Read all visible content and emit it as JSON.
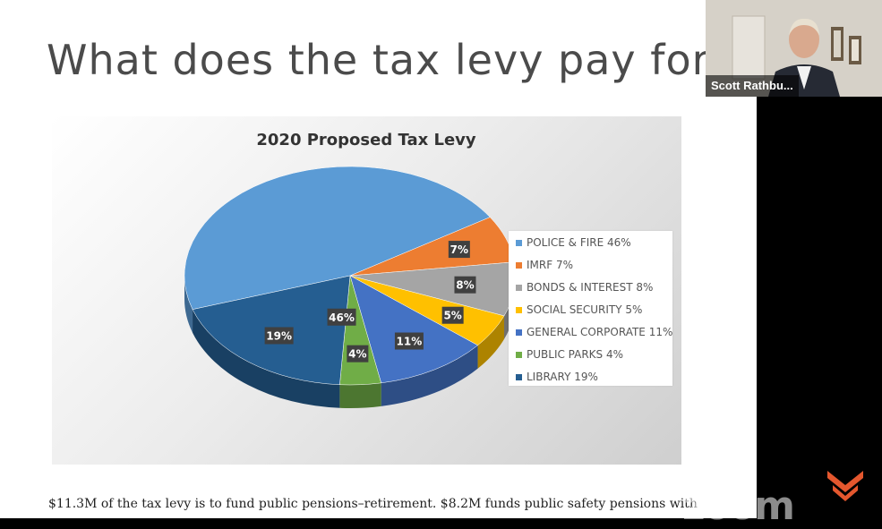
{
  "slide": {
    "title": "What does the tax levy pay for?",
    "caption": "$11.3M of the tax levy is to fund public pensions–retirement. $8.2M funds public safety pensions with"
  },
  "chart_data": {
    "type": "pie",
    "title": "2020 Proposed Tax Levy",
    "slices": [
      {
        "label": "POLICE & FIRE",
        "value": 46,
        "display": "46%",
        "color": "#5b9bd5"
      },
      {
        "label": "IMRF",
        "value": 7,
        "display": "7%",
        "color": "#ed7d31"
      },
      {
        "label": "BONDS & INTEREST",
        "value": 8,
        "display": "8%",
        "color": "#a5a5a5"
      },
      {
        "label": "SOCIAL SECURITY",
        "value": 5,
        "display": "5%",
        "color": "#ffc000"
      },
      {
        "label": "GENERAL CORPORATE",
        "value": 11,
        "display": "11%",
        "color": "#4472c4"
      },
      {
        "label": "PUBLIC PARKS",
        "value": 4,
        "display": "4%",
        "color": "#70ad47"
      },
      {
        "label": "LIBRARY",
        "value": 19,
        "display": "19%",
        "color": "#255e91"
      }
    ],
    "legend_items": [
      "POLICE & FIRE  46%",
      "IMRF  7%",
      "BONDS & INTEREST  8%",
      "SOCIAL SECURITY  5%",
      "GENERAL CORPORATE  11%",
      "PUBLIC PARKS  4%",
      "LIBRARY  19%"
    ],
    "legend_position": "right"
  },
  "video": {
    "participant_name": "Scott Rathbu..."
  },
  "watermark": {
    "text": "zoom"
  }
}
